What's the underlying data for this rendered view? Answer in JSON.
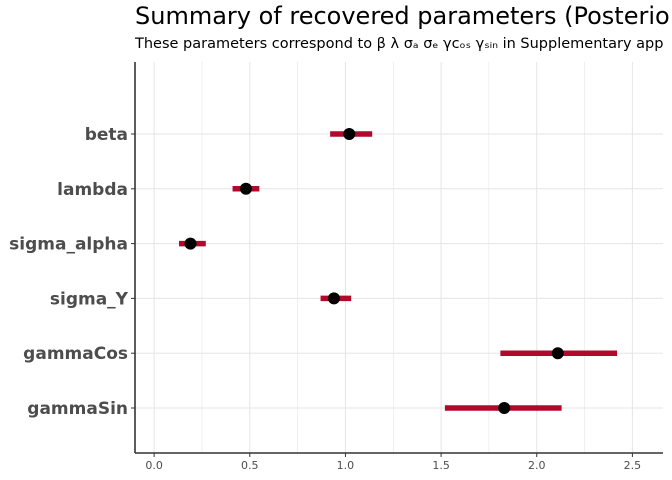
{
  "title": "Summary of recovered parameters (Posterio",
  "subtitle": "These parameters correspond to  β λ σₐ σₑ γᴄₒₛ γₛᵢₙ in Supplementary app",
  "chart_data": {
    "type": "interval",
    "parameters": [
      "beta",
      "lambda",
      "sigma_alpha",
      "sigma_Y",
      "gammaCos",
      "gammaSin"
    ],
    "estimates": [
      1.02,
      0.48,
      0.19,
      0.94,
      2.11,
      1.83
    ],
    "intervals": [
      [
        0.92,
        1.14
      ],
      [
        0.41,
        0.55
      ],
      [
        0.13,
        0.27
      ],
      [
        0.87,
        1.03
      ],
      [
        1.81,
        2.42
      ],
      [
        1.52,
        2.13
      ]
    ],
    "x_ticks": [
      "0.0",
      "0.5",
      "1.0",
      "1.5",
      "2.0",
      "2.5"
    ],
    "x_tick_values": [
      0,
      0.5,
      1.0,
      1.5,
      2.0,
      2.5
    ],
    "xlim": [
      -0.1,
      2.66
    ],
    "grid": true,
    "interval_color": "#b0092b",
    "point_color": "#000000",
    "grid_color": "#e5e5e5",
    "axis_color": "#333333"
  }
}
